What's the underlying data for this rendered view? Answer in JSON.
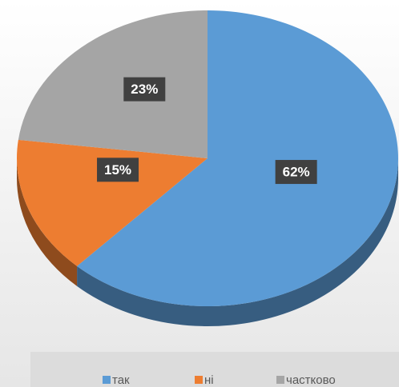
{
  "chart_data": {
    "type": "pie3d",
    "categories": [
      "так",
      "ні",
      "частково"
    ],
    "values": [
      62,
      15,
      23
    ],
    "value_labels": [
      "62%",
      "15%",
      "23%"
    ],
    "colors": [
      "#5b9bd5",
      "#ed7d31",
      "#a5a5a5"
    ],
    "legend": "bottom"
  }
}
